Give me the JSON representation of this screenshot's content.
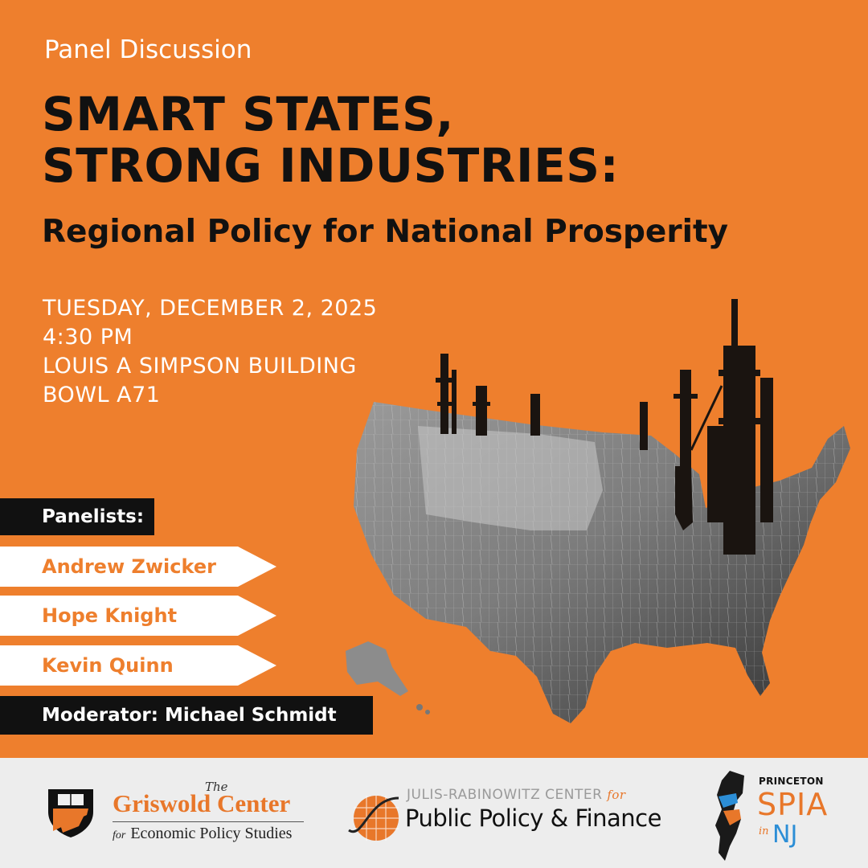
{
  "event": {
    "type_label": "Panel Discussion",
    "title_line1": "SMART STATES,",
    "title_line2": "STRONG INDUSTRIES:",
    "subtitle": "Regional Policy for National Prosperity",
    "date": "TUESDAY, DECEMBER 2, 2025",
    "time": "4:30 PM",
    "location_line1": "LOUIS A SIMPSON BUILDING",
    "location_line2": "BOWL A71"
  },
  "panel": {
    "heading": "Panelists:",
    "panelists": [
      "Andrew Zwicker",
      "Hope Knight",
      "Kevin Quinn"
    ],
    "moderator": "Moderator: Michael Schmidt"
  },
  "sponsors": {
    "griswold": {
      "the": "The",
      "name": "Griswold Center",
      "for": "for",
      "subtitle": "Economic Policy Studies"
    },
    "julis_rabinowitz": {
      "top": "JULIS-RABINOWITZ CENTER",
      "for": "for",
      "bottom": "Public Policy & Finance"
    },
    "spia": {
      "princeton": "PRINCETON",
      "spia": "SPIA",
      "in": "in",
      "nj": "NJ"
    }
  },
  "colors": {
    "background": "#EE7F2D",
    "dark": "#111111",
    "white": "#ffffff",
    "footer": "#EDEDED",
    "nj_blue": "#2C8ED6"
  },
  "icons": [
    "map-illustration-icon",
    "princeton-shield-icon",
    "globe-line-icon",
    "new-jersey-map-icon"
  ]
}
